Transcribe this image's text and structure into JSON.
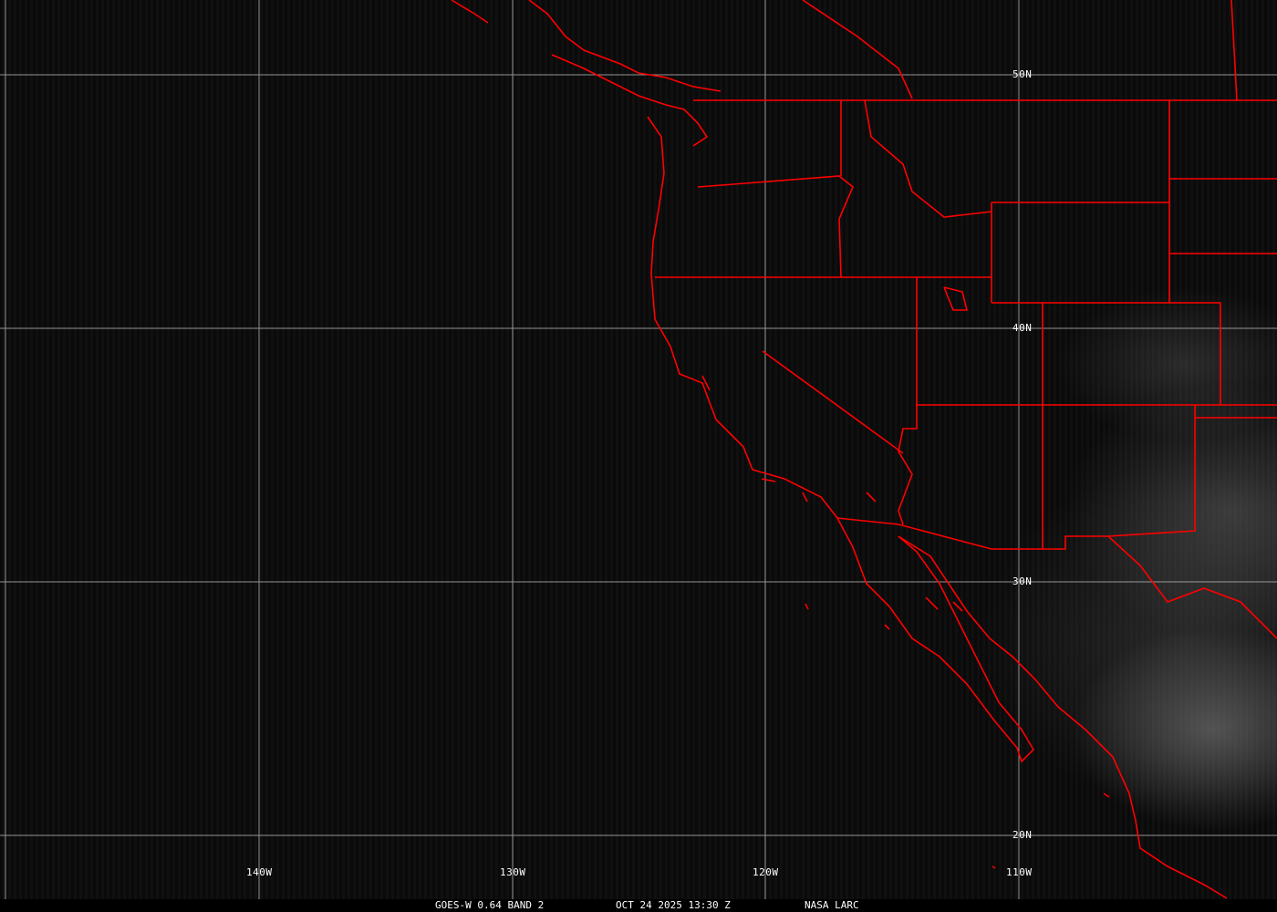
{
  "satellite_image": {
    "lat_labels": [
      "50N",
      "40N",
      "30N",
      "20N"
    ],
    "lon_labels": [
      "140W",
      "130W",
      "120W",
      "110W"
    ],
    "caption": {
      "source": "GOES-W 0.64 BAND 2",
      "datetime": "OCT 24 2025 13:30 Z",
      "credit": "NASA LARC"
    },
    "colors": {
      "borders": "#ff0000",
      "grid": "#b4b4b4",
      "background": "#050505"
    }
  }
}
